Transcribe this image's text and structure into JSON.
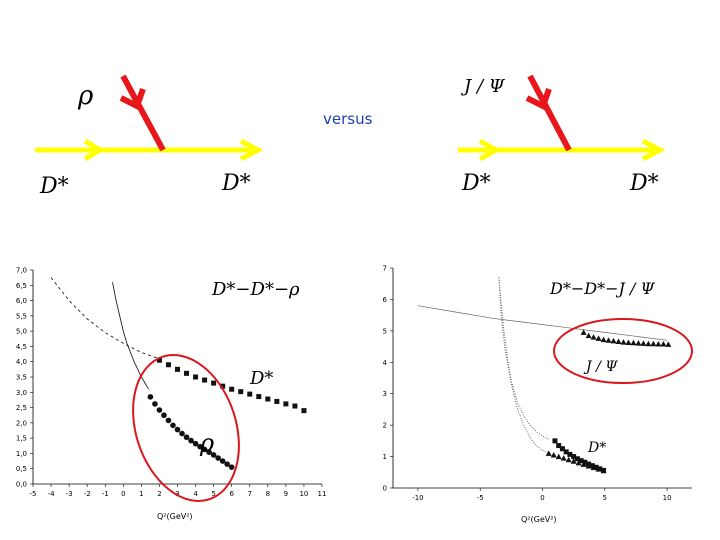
{
  "diagrams": {
    "left": {
      "exchanged": "ρ",
      "in": "D*",
      "out": "D*"
    },
    "right": {
      "exchanged": "J / Ψ",
      "in": "D*",
      "out": "D*"
    },
    "versus": "versus",
    "colors": {
      "line": "#ffff00",
      "exchange": "#e8171b",
      "versus": "#2040b0"
    }
  },
  "chart_data": [
    {
      "type": "scatter",
      "title": "D*−D*−ρ",
      "xlabel": "Q²(GeV²)",
      "ylabel": "",
      "xlim": [
        -5,
        11
      ],
      "ylim": [
        0,
        7
      ],
      "xticks": [
        -5,
        -4,
        -3,
        -2,
        -1,
        0,
        1,
        2,
        3,
        4,
        5,
        6,
        7,
        8,
        9,
        10,
        11
      ],
      "yticks": [
        "0,0",
        "0,5",
        "1,0",
        "1,5",
        "2,0",
        "2,5",
        "3,0",
        "3,5",
        "4,0",
        "4,5",
        "5,0",
        "5,5",
        "6,0",
        "6,5",
        "7,0"
      ],
      "annotations": [
        "D*",
        "ρ"
      ],
      "highlight_color": "#d9161b",
      "series": [
        {
          "label": "D*",
          "style": "dashed-fit",
          "x": [
            -4,
            -3,
            -2,
            -1,
            0,
            1,
            2
          ],
          "y": [
            6.75,
            6.0,
            5.4,
            4.95,
            4.6,
            4.3,
            4.1
          ]
        },
        {
          "label": "D*",
          "style": "squares",
          "x": [
            2.0,
            2.5,
            3.0,
            3.5,
            4.0,
            4.5,
            5.0,
            5.5,
            6.0,
            6.5,
            7.0,
            7.5,
            8.0,
            8.5,
            9.0,
            9.5,
            10.0
          ],
          "y": [
            4.05,
            3.9,
            3.75,
            3.62,
            3.5,
            3.4,
            3.3,
            3.2,
            3.1,
            3.02,
            2.94,
            2.86,
            2.78,
            2.7,
            2.62,
            2.55,
            2.4
          ]
        },
        {
          "label": "ρ",
          "style": "solid-fit",
          "x": [
            -0.6,
            -0.4,
            -0.2,
            0.0,
            0.2,
            0.4,
            0.6,
            0.8,
            1.0,
            1.2,
            1.4
          ],
          "y": [
            6.6,
            6.0,
            5.5,
            5.0,
            4.6,
            4.3,
            4.0,
            3.75,
            3.5,
            3.3,
            3.1
          ]
        },
        {
          "label": "ρ",
          "style": "circles",
          "x": [
            1.5,
            1.75,
            2.0,
            2.25,
            2.5,
            2.75,
            3.0,
            3.25,
            3.5,
            3.75,
            4.0,
            4.25,
            4.5,
            4.75,
            5.0,
            5.25,
            5.5,
            5.75,
            6.0
          ],
          "y": [
            2.85,
            2.62,
            2.42,
            2.25,
            2.08,
            1.92,
            1.78,
            1.65,
            1.53,
            1.42,
            1.32,
            1.22,
            1.13,
            1.04,
            0.95,
            0.85,
            0.75,
            0.65,
            0.55
          ]
        }
      ]
    },
    {
      "type": "scatter",
      "title": "D*−D*−J / Ψ",
      "xlabel": "Q²(GeV²)",
      "ylabel": "",
      "xlim": [
        -12,
        12
      ],
      "ylim": [
        0,
        7
      ],
      "xticks": [
        -10,
        -5,
        0,
        5,
        10
      ],
      "yticks": [
        "0",
        "1",
        "2",
        "3",
        "4",
        "5",
        "6",
        "7"
      ],
      "annotations": [
        "J / Ψ",
        "D*"
      ],
      "highlight_color": "#d9161b",
      "series": [
        {
          "label": "J / Ψ",
          "style": "solid-fit",
          "x": [
            -10,
            -7,
            -4,
            -1,
            2,
            5,
            8,
            10
          ],
          "y": [
            5.8,
            5.6,
            5.4,
            5.25,
            5.1,
            4.95,
            4.8,
            4.7
          ]
        },
        {
          "label": "J / Ψ",
          "style": "triangles",
          "x": [
            3.3,
            3.7,
            4.1,
            4.5,
            4.9,
            5.3,
            5.7,
            6.1,
            6.5,
            6.9,
            7.3,
            7.7,
            8.1,
            8.5,
            8.9,
            9.3,
            9.7,
            10.1
          ],
          "y": [
            4.95,
            4.85,
            4.8,
            4.76,
            4.72,
            4.7,
            4.68,
            4.66,
            4.64,
            4.63,
            4.62,
            4.61,
            4.6,
            4.59,
            4.59,
            4.58,
            4.58,
            4.57
          ]
        },
        {
          "label": "D*",
          "style": "dotted-fit-a",
          "x": [
            -3.5,
            -3.3,
            -3.1,
            -2.8,
            -2.5,
            -2.0,
            -1.5,
            -1.0,
            -0.5,
            0.0,
            0.5
          ],
          "y": [
            6.7,
            5.8,
            5.0,
            4.1,
            3.4,
            2.7,
            2.3,
            2.0,
            1.8,
            1.65,
            1.55
          ]
        },
        {
          "label": "D*",
          "style": "dotted-fit-b",
          "x": [
            -3.5,
            -3.3,
            -3.0,
            -2.5,
            -2.0,
            -1.5,
            -1.0,
            -0.5,
            0.0,
            0.5
          ],
          "y": [
            6.7,
            5.4,
            4.4,
            3.3,
            2.5,
            2.0,
            1.6,
            1.35,
            1.2,
            1.1
          ]
        },
        {
          "label": "D*",
          "style": "squares",
          "x": [
            1.0,
            1.3,
            1.6,
            1.9,
            2.2,
            2.5,
            2.8,
            3.1,
            3.4,
            3.7,
            4.0,
            4.3,
            4.6,
            4.9
          ],
          "y": [
            1.5,
            1.35,
            1.25,
            1.15,
            1.07,
            1.0,
            0.93,
            0.87,
            0.82,
            0.76,
            0.71,
            0.66,
            0.61,
            0.56
          ]
        },
        {
          "label": "D*",
          "style": "triangles",
          "x": [
            0.5,
            0.9,
            1.3,
            1.7,
            2.1,
            2.5,
            2.9,
            3.3,
            3.7,
            4.1,
            4.5,
            4.9
          ],
          "y": [
            1.1,
            1.05,
            1.0,
            0.95,
            0.9,
            0.85,
            0.8,
            0.75,
            0.7,
            0.65,
            0.6,
            0.55
          ]
        }
      ]
    }
  ]
}
